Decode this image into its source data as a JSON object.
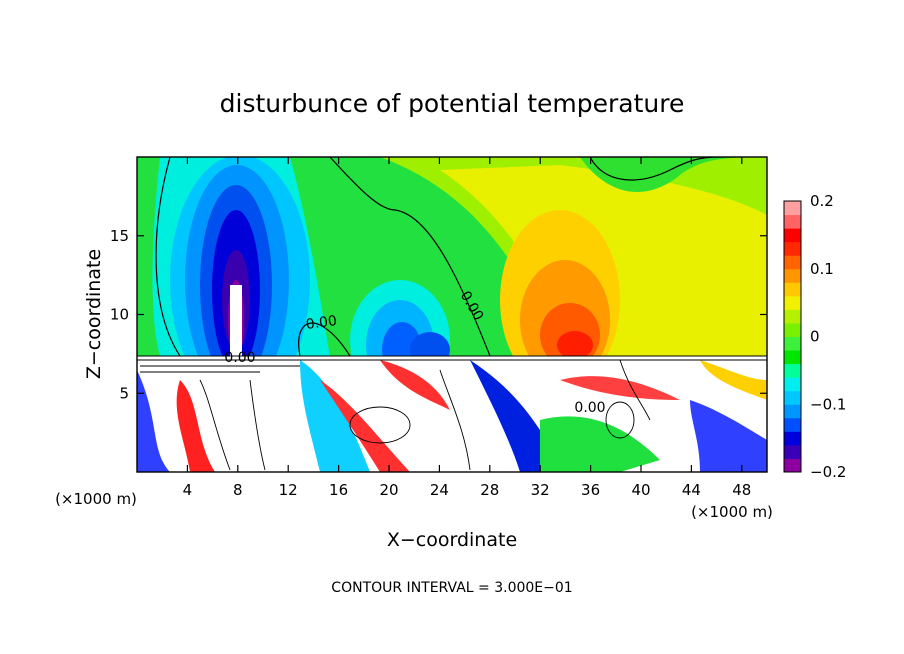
{
  "chart_data": {
    "type": "heatmap",
    "title": "disturbunce of potential temperature",
    "xlabel": "X−coordinate",
    "ylabel": "Z−coordinate",
    "x_unit_label_left": "(×1000 m)",
    "x_unit_label_right": "(×1000 m)",
    "xlim": [
      0,
      50
    ],
    "ylim": [
      0,
      20
    ],
    "x_ticks": [
      4,
      8,
      12,
      16,
      20,
      24,
      28,
      32,
      36,
      40,
      44,
      48
    ],
    "x_tick_labels": [
      "4",
      "8",
      "12",
      "16",
      "20",
      "24",
      "28",
      "32",
      "36",
      "40",
      "44",
      "48"
    ],
    "y_ticks": [
      5,
      10,
      15
    ],
    "y_tick_labels": [
      "5",
      "10",
      "15"
    ],
    "colorbar": {
      "range": [
        -0.2,
        0.2
      ],
      "labels": [
        {
          "value": 0.2,
          "text": "0.2"
        },
        {
          "value": 0.1,
          "text": "0.1"
        },
        {
          "value": 0,
          "text": "0"
        },
        {
          "value": -0.1,
          "text": "−0.1"
        },
        {
          "value": -0.2,
          "text": "−0.2"
        }
      ],
      "colors": [
        "#8c00a0",
        "#3a00b8",
        "#0000dd",
        "#0050ff",
        "#0096ff",
        "#00c8ff",
        "#00eeee",
        "#00ff9a",
        "#00e600",
        "#3cf03c",
        "#78f000",
        "#b4f000",
        "#f0f000",
        "#ffc800",
        "#ff9600",
        "#ff6400",
        "#ff2800",
        "#ff0000",
        "#ff6464",
        "#ffa0a0"
      ]
    },
    "contour_labels": [
      "0.00",
      "0.00",
      "0.00",
      "0.00"
    ],
    "contour_interval_text": "CONTOUR INTERVAL = 3.000E−01"
  }
}
